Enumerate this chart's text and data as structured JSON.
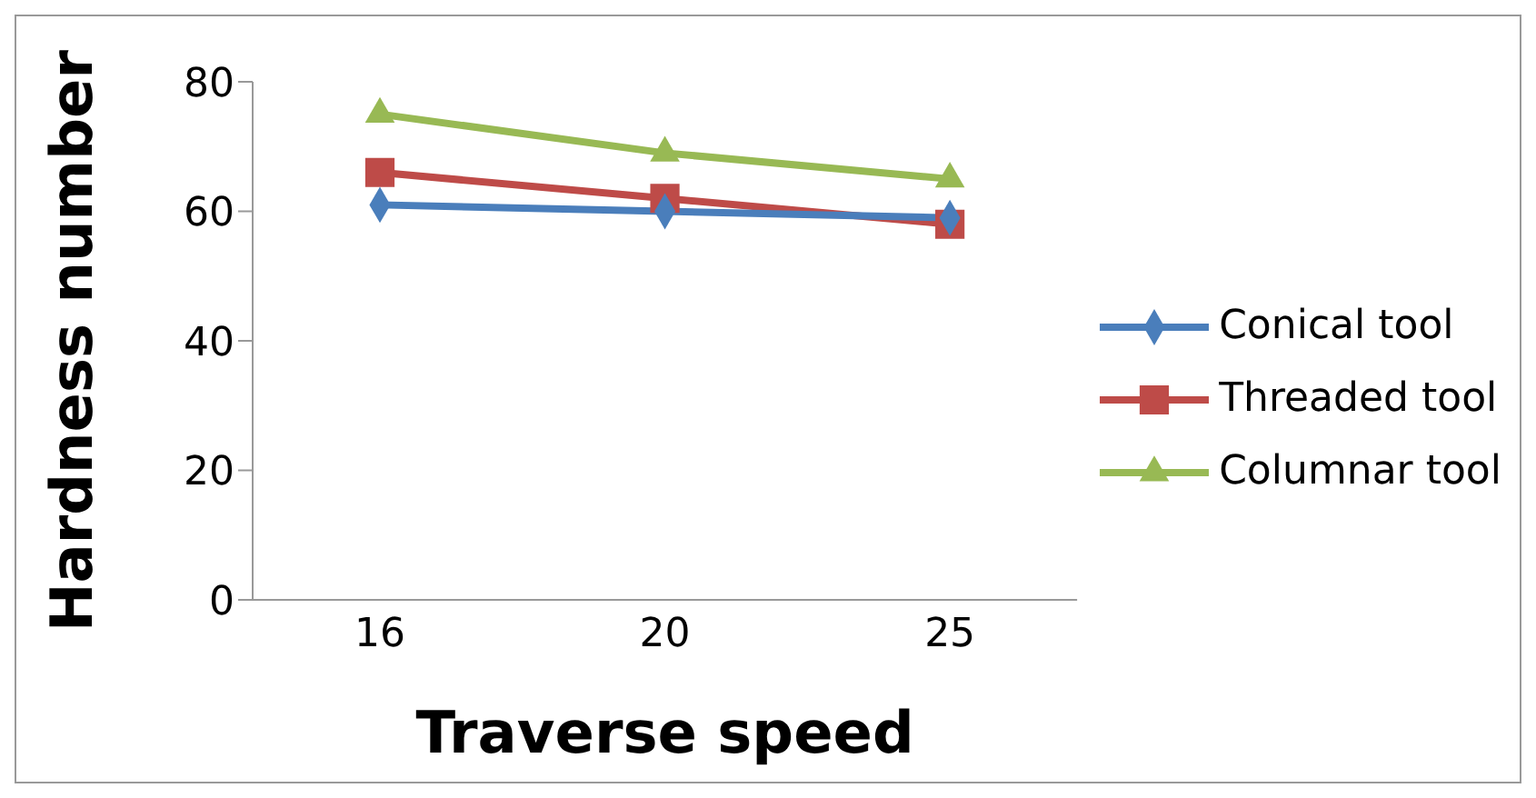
{
  "chart_data": {
    "type": "line",
    "xlabel": "Traverse speed",
    "ylabel": "Hardness number",
    "categories": [
      "16",
      "20",
      "25"
    ],
    "series": [
      {
        "name": "Conical tool",
        "color": "#4a7ebb",
        "values": [
          61,
          60,
          59
        ],
        "marker": "diamond"
      },
      {
        "name": "Threaded tool",
        "color": "#be4b48",
        "values": [
          66,
          62,
          58
        ],
        "marker": "square"
      },
      {
        "name": "Columnar tool",
        "color": "#98b954",
        "values": [
          75,
          69,
          65
        ],
        "marker": "triangle"
      }
    ],
    "ylim": [
      0,
      80
    ],
    "yticks": [
      0,
      20,
      40,
      60,
      80
    ],
    "grid": false,
    "legend": "right"
  }
}
